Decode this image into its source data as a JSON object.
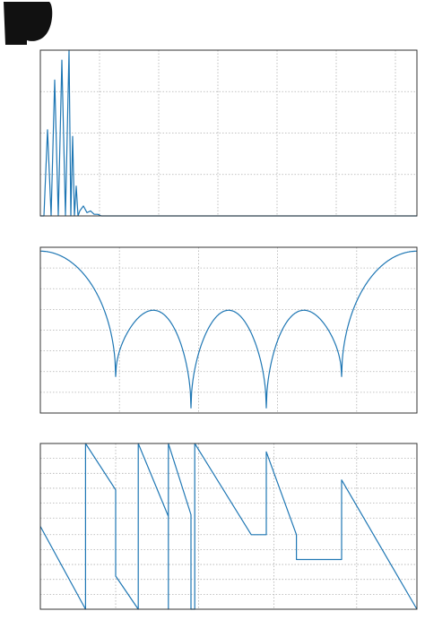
{
  "colors": {
    "series": "#1f77b4",
    "frame": "#333333",
    "grid": "#b0b0b0"
  },
  "logo": {
    "icon": "dark-blob-icon"
  },
  "chart_data": [
    {
      "type": "line",
      "title": "",
      "xlabel": "",
      "ylabel": "",
      "grid": true,
      "xlim": [
        0,
        21
      ],
      "ylim": [
        0,
        1
      ],
      "x": [
        0,
        0.2,
        0.4,
        0.6,
        0.8,
        1.0,
        1.2,
        1.4,
        1.6,
        1.7,
        1.8,
        1.9,
        2.0,
        2.1,
        2.2,
        2.4,
        2.6,
        2.8,
        3.0,
        3.2,
        3.4,
        3.6,
        21
      ],
      "values": [
        0,
        0,
        0.52,
        0,
        0.82,
        0,
        0.94,
        0,
        1.0,
        0,
        0.48,
        0,
        0.18,
        0,
        0.03,
        0.06,
        0.02,
        0.03,
        0.01,
        0.01,
        0,
        0,
        0
      ],
      "xticks": [
        3.3,
        6.6,
        9.9,
        13.2,
        16.5,
        19.8
      ],
      "yticks": [
        0.25,
        0.5,
        0.75
      ]
    },
    {
      "type": "line",
      "title": "",
      "xlabel": "",
      "ylabel": "",
      "grid": true,
      "xlim": [
        0,
        5
      ],
      "ylim": [
        0,
        1
      ],
      "curve": "abs_sinc",
      "zeros": [
        1,
        2,
        3,
        4
      ],
      "dips": [
        0.22,
        0.03,
        0.03,
        0.22
      ],
      "xticks": [
        1.05,
        2.1,
        3.15,
        4.2
      ],
      "yticks": [
        0.125,
        0.25,
        0.375,
        0.5,
        0.625,
        0.75,
        0.875
      ]
    },
    {
      "type": "line",
      "title": "",
      "xlabel": "",
      "ylabel": "",
      "grid": true,
      "xlim": [
        0,
        5
      ],
      "ylim": [
        0,
        1
      ],
      "x": [
        0,
        0.6,
        0.6,
        1.0,
        1.0,
        1.3,
        1.3,
        1.7,
        1.7,
        1.7,
        2.0,
        2.0,
        2.05,
        2.05,
        2.8,
        3.0,
        3.0,
        3.4,
        3.4,
        4.0,
        4.0,
        5.0
      ],
      "values": [
        0.5,
        0.0,
        1.0,
        0.72,
        0.2,
        0.0,
        1.0,
        0.56,
        0.0,
        1.0,
        0.57,
        0.0,
        0.0,
        1.0,
        0.45,
        0.45,
        0.95,
        0.45,
        0.3,
        0.3,
        0.78,
        0.0
      ],
      "xticks": [
        1.0,
        2.1,
        3.1,
        4.2
      ],
      "yticks": [
        0.09,
        0.18,
        0.27,
        0.36,
        0.45,
        0.55,
        0.64,
        0.73,
        0.82,
        0.91
      ]
    }
  ]
}
